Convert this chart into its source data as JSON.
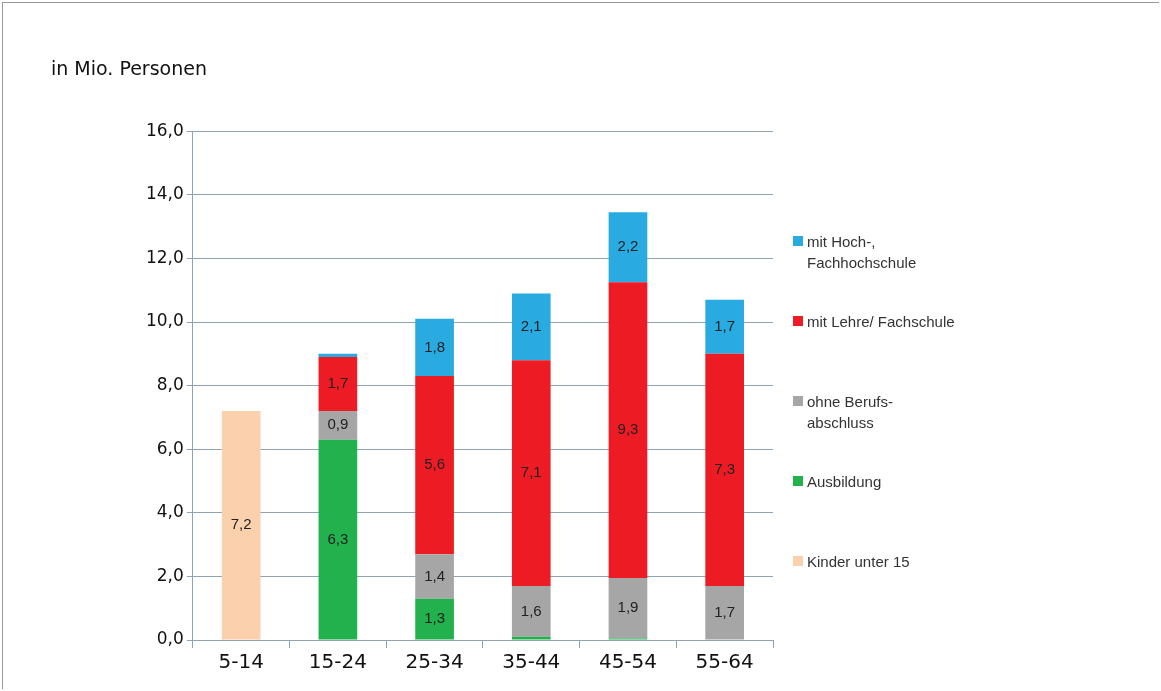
{
  "chart_data": {
    "type": "bar",
    "stacked": true,
    "title": "in Mio. Personen",
    "categories": [
      "5-14",
      "15-24",
      "25-34",
      "35-44",
      "45-54",
      "55-64"
    ],
    "series": [
      {
        "name": "Kinder unter 15",
        "color": "#fad0ad",
        "values": [
          7.2,
          null,
          null,
          null,
          null,
          null
        ],
        "value_labels": [
          "7,2",
          null,
          null,
          null,
          null,
          null
        ]
      },
      {
        "name": "Ausbildung",
        "color": "#22b14c",
        "values": [
          null,
          6.3,
          1.3,
          0.1,
          0.05,
          null
        ],
        "value_labels": [
          null,
          "6,3",
          "1,3",
          null,
          null,
          null
        ]
      },
      {
        "name": "ohne Berufs-abschluss",
        "color": "#a6a6a6",
        "values": [
          null,
          0.9,
          1.4,
          1.6,
          1.9,
          1.7
        ],
        "value_labels": [
          null,
          "0,9",
          "1,4",
          "1,6",
          "1,9",
          "1,7"
        ]
      },
      {
        "name": "mit Lehre/ Fachschule",
        "color": "#ed1c24",
        "values": [
          null,
          1.7,
          5.6,
          7.1,
          9.3,
          7.3
        ],
        "value_labels": [
          null,
          "1,7",
          "5,6",
          "7,1",
          "9,3",
          "7,3"
        ]
      },
      {
        "name": "mit Hoch-, Fachhochschule",
        "color": "#29abe2",
        "values": [
          null,
          0.1,
          1.8,
          2.1,
          2.2,
          1.7
        ],
        "value_labels": [
          null,
          null,
          "1,8",
          "2,1",
          "2,2",
          "1,7"
        ]
      }
    ],
    "ylim": [
      0,
      16
    ],
    "yticks": [
      {
        "value": 0,
        "label": "0,0"
      },
      {
        "value": 2,
        "label": "2,0"
      },
      {
        "value": 4,
        "label": "4,0"
      },
      {
        "value": 6,
        "label": "6,0"
      },
      {
        "value": 8,
        "label": "8,0"
      },
      {
        "value": 10,
        "label": "10,0"
      },
      {
        "value": 12,
        "label": "12,0"
      },
      {
        "value": 14,
        "label": "14,0"
      },
      {
        "value": 16,
        "label": "16,0"
      }
    ],
    "grid": "y",
    "legend": "right"
  }
}
